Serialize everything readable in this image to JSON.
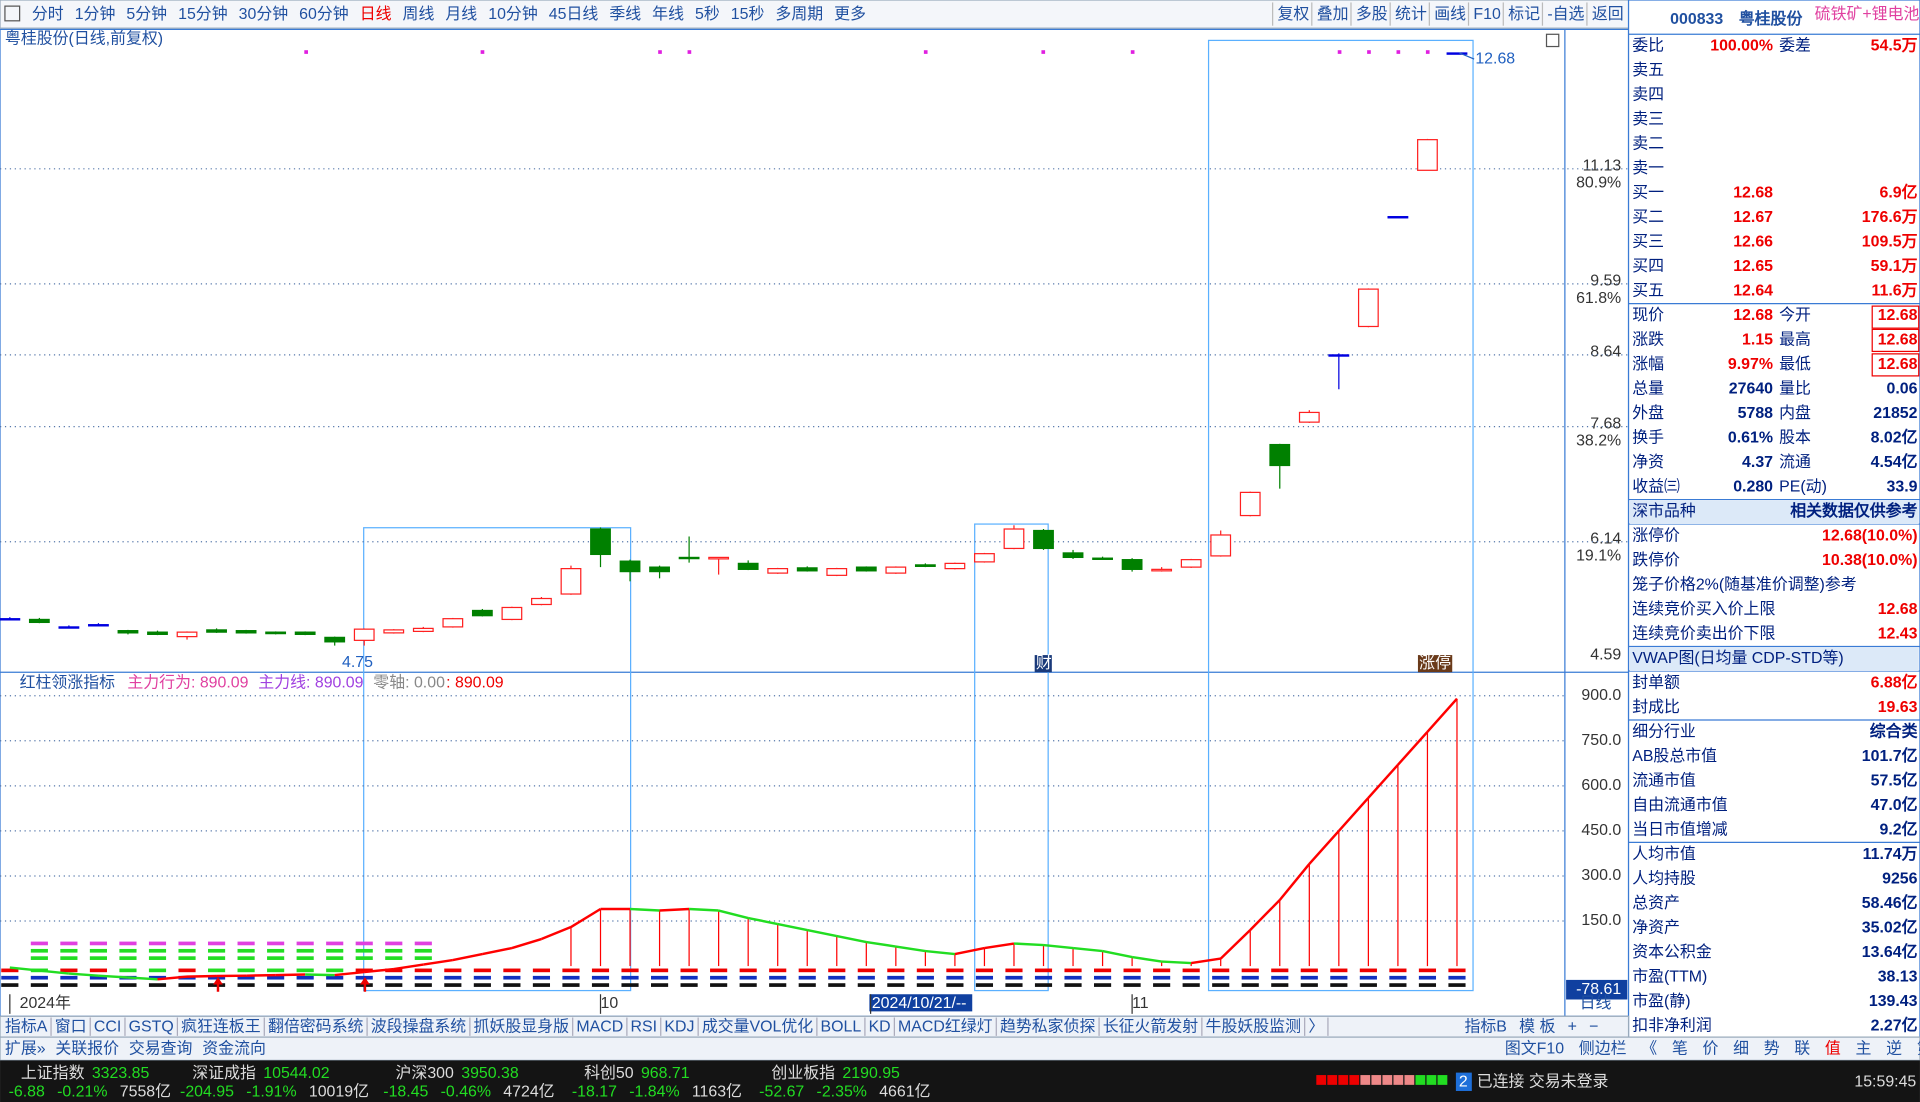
{
  "toolbar": {
    "periods": [
      "分时",
      "1分钟",
      "5分钟",
      "15分钟",
      "30分钟",
      "60分钟",
      "日线",
      "周线",
      "月线",
      "10分钟",
      "45日线",
      "季线",
      "年线",
      "5秒",
      "15秒",
      "多周期",
      "更多"
    ],
    "actions": [
      "复权",
      "叠加",
      "多股",
      "统计",
      "画线",
      "F10",
      "标记",
      "-自选",
      "返回"
    ]
  },
  "chart_data": [
    {
      "type": "candlestick",
      "title": "粤桂股份(日线,前复权)",
      "open": [
        5.11,
        5.1,
        5.0,
        5.03,
        4.95,
        4.93,
        4.87,
        4.96,
        4.95,
        4.93,
        4.93,
        4.86,
        4.82,
        4.92,
        4.94,
        5.0,
        5.22,
        5.1,
        5.3,
        5.44,
        6.31,
        5.88,
        5.8,
        5.93,
        5.91,
        5.85,
        5.72,
        5.79,
        5.69,
        5.8,
        5.72,
        5.83,
        5.78,
        5.87,
        6.05,
        6.29,
        5.99,
        5.92,
        5.9,
        5.75,
        5.8,
        5.95,
        6.49,
        7.44,
        7.74,
        8.64,
        9.02,
        10.49,
        11.11,
        12.68
      ],
      "high": [
        5.13,
        5.12,
        5.02,
        5.05,
        4.96,
        4.95,
        4.94,
        4.98,
        4.96,
        4.94,
        4.94,
        4.87,
        4.98,
        4.97,
        5.0,
        5.12,
        5.24,
        5.27,
        5.4,
        5.82,
        6.33,
        5.9,
        5.82,
        6.21,
        5.93,
        5.89,
        5.79,
        5.81,
        5.79,
        5.81,
        5.81,
        5.85,
        5.86,
        5.99,
        6.36,
        6.31,
        6.03,
        5.94,
        5.92,
        5.8,
        5.91,
        6.29,
        6.81,
        7.45,
        7.9,
        8.66,
        9.53,
        10.49,
        11.53,
        12.68
      ],
      "low": [
        5.09,
        5.05,
        4.99,
        5.01,
        4.9,
        4.89,
        4.83,
        4.92,
        4.91,
        4.9,
        4.89,
        4.75,
        4.75,
        4.91,
        4.93,
        4.99,
        5.14,
        5.09,
        5.29,
        5.43,
        5.8,
        5.61,
        5.65,
        5.86,
        5.7,
        5.76,
        5.71,
        5.74,
        5.68,
        5.74,
        5.71,
        5.8,
        5.77,
        5.86,
        6.04,
        6.03,
        5.91,
        5.9,
        5.74,
        5.74,
        5.79,
        5.94,
        6.48,
        6.85,
        7.73,
        8.18,
        9.01,
        10.49,
        11.11,
        12.68
      ],
      "close": [
        5.11,
        5.06,
        5.0,
        5.03,
        4.92,
        4.9,
        4.93,
        4.93,
        4.92,
        4.91,
        4.9,
        4.8,
        4.97,
        4.96,
        4.98,
        5.11,
        5.15,
        5.26,
        5.38,
        5.78,
        5.97,
        5.74,
        5.74,
        5.92,
        5.93,
        5.77,
        5.78,
        5.75,
        5.78,
        5.75,
        5.8,
        5.81,
        5.85,
        5.98,
        6.31,
        6.05,
        5.93,
        5.91,
        5.77,
        5.77,
        5.9,
        6.23,
        6.8,
        7.16,
        7.87,
        8.64,
        9.52,
        10.49,
        11.52,
        12.68
      ],
      "ylim": [
        4.41,
        12.93
      ],
      "yticks": [
        4.59,
        6.14,
        7.68,
        8.64,
        9.59,
        11.13
      ],
      "fib_labels": [
        "19.1%",
        "38.2%",
        "61.8%",
        "80.9%"
      ],
      "high_label": 12.68,
      "low_label": 4.75,
      "x_labels": [
        "2024年",
        "10",
        "2024/10/21/--",
        "11"
      ],
      "markers": [
        "财",
        "涨停"
      ],
      "up_color": "#ff2020",
      "down_color": "#008000",
      "doji_color": "#0000e0",
      "grid": true
    },
    {
      "type": "line",
      "title": "红柱领涨指标",
      "legend": [
        "主力行为: 890.09",
        "主力线: 890.09",
        "零轴: 0.00",
        ": 890.09"
      ],
      "values": [
        -5,
        -15,
        -25,
        -32,
        -38,
        -44,
        -35,
        -33,
        -32,
        -30,
        -28,
        -30,
        -20,
        -10,
        5,
        20,
        40,
        60,
        90,
        130,
        190,
        190,
        185,
        190,
        185,
        160,
        140,
        120,
        100,
        80,
        65,
        50,
        40,
        60,
        75,
        70,
        60,
        50,
        30,
        15,
        10,
        25,
        120,
        220,
        340,
        450,
        560,
        670,
        780,
        890.09
      ],
      "up_color": "#ff0000",
      "down_color": "#22dd22",
      "ylim": [
        -106,
        966
      ],
      "yticks": [
        {
          "value": 150,
          "label": "150.0"
        },
        {
          "value": 300,
          "label": "300.0"
        },
        {
          "value": 450,
          "label": "450.0"
        },
        {
          "value": 600,
          "label": "600.0"
        },
        {
          "value": 750,
          "label": "750.0"
        },
        {
          "value": 900,
          "label": "900.0"
        }
      ],
      "cursor_value": -78.61,
      "period_label": "日线"
    }
  ],
  "quote": {
    "code": "000833",
    "name": "粤桂股份",
    "concept": "硫铁矿+锂电池",
    "rows": [
      [
        "委比",
        "100.00%",
        "委差",
        "54.5万"
      ],
      [
        "卖五"
      ],
      [
        "卖四"
      ],
      [
        "卖三"
      ],
      [
        "卖二"
      ],
      [
        "卖一"
      ],
      [
        "买一",
        "12.68",
        "",
        "6.9亿"
      ],
      [
        "买二",
        "12.67",
        "",
        "176.6万"
      ],
      [
        "买三",
        "12.66",
        "",
        "109.5万"
      ],
      [
        "买四",
        "12.65",
        "",
        "59.1万"
      ],
      [
        "买五",
        "12.64",
        "",
        "11.6万"
      ],
      [
        "现价",
        "12.68",
        "今开",
        "12.68"
      ],
      [
        "涨跌",
        "1.15",
        "最高",
        "12.68"
      ],
      [
        "涨幅",
        "9.97%",
        "最低",
        "12.68"
      ],
      [
        "总量",
        "27640",
        "量比",
        "0.06"
      ],
      [
        "外盘",
        "5788",
        "内盘",
        "21852"
      ],
      [
        "换手",
        "0.61%",
        "股本",
        "8.02亿"
      ],
      [
        "净资",
        "4.37",
        "流通",
        "4.54亿"
      ],
      [
        "收益㈢",
        "0.280",
        "PE(动)",
        "33.9"
      ],
      [
        "深市品种",
        "相关数据仅供参考"
      ],
      [
        "涨停价",
        "12.68(10.0%)"
      ],
      [
        "跌停价",
        "10.38(10.0%)"
      ],
      [
        "笼子价格2%(随基准价调整)参考"
      ],
      [
        "连续竞价买入价上限",
        "12.68"
      ],
      [
        "连续竞价卖出价下限",
        "12.43"
      ],
      [
        "VWAP图(日均量 CDP-STD等)"
      ],
      [
        "封单额",
        "6.88亿"
      ],
      [
        "封成比",
        "19.63"
      ],
      [
        "细分行业",
        "综合类"
      ],
      [
        "AB股总市值",
        "101.7亿"
      ],
      [
        "流通市值",
        "57.5亿"
      ],
      [
        "自由流通市值",
        "47.0亿"
      ],
      [
        "当日市值增减",
        "9.2亿"
      ],
      [
        "人均市值",
        "11.74万"
      ],
      [
        "人均持股",
        "9256"
      ],
      [
        "总资产",
        "58.46亿"
      ],
      [
        "净资产",
        "35.02亿"
      ],
      [
        "资本公积金",
        "13.64亿"
      ],
      [
        "市盈(TTM)",
        "38.13"
      ],
      [
        "市盈(静)",
        "139.43"
      ],
      [
        "扣非净利润",
        "2.27亿"
      ]
    ]
  },
  "tabs": {
    "left": [
      "指标A",
      "窗口",
      "CCI",
      "GSTQ",
      "疯狂连板王",
      "翻倍密码系统",
      "波段操盘系统",
      "抓妖股显身版",
      "MACD",
      "RSI",
      "KDJ",
      "成交量VOL优化",
      "BOLL",
      "KD",
      "MACD红绿灯",
      "趋势私家侦探",
      "长征火箭发射",
      "牛股妖股监测",
      "〉"
    ],
    "right": [
      "指标B",
      "模 板",
      "+",
      "−"
    ],
    "row2_left": [
      "扩展»",
      "关联报价",
      "交易查询",
      "资金流向"
    ],
    "row2_right": [
      "图文F10",
      "侧边栏",
      "《",
      "笔",
      "价",
      "细",
      "势",
      "联",
      "值",
      "主",
      "逆",
      "第"
    ]
  },
  "status": {
    "indices": [
      {
        "name": "上证指数",
        "value": "3323.85",
        "change": "-6.88",
        "pct": "-0.21%",
        "amount": "7558亿"
      },
      {
        "name": "深证成指",
        "value": "10544.02",
        "change": "-204.95",
        "pct": "-1.91%",
        "amount": "10019亿"
      },
      {
        "name": "沪深300",
        "value": "3950.38",
        "change": "-18.45",
        "pct": "-0.46%",
        "amount": "4724亿"
      },
      {
        "name": "科创50",
        "value": "968.71",
        "change": "-18.17",
        "pct": "-1.84%",
        "amount": "1163亿"
      },
      {
        "name": "创业板指",
        "value": "2190.95",
        "change": "-52.67",
        "pct": "-2.35%",
        "amount": "4661亿"
      }
    ],
    "badge": "2",
    "connection": "已连接 交易未登录",
    "time": "15:59:45"
  }
}
